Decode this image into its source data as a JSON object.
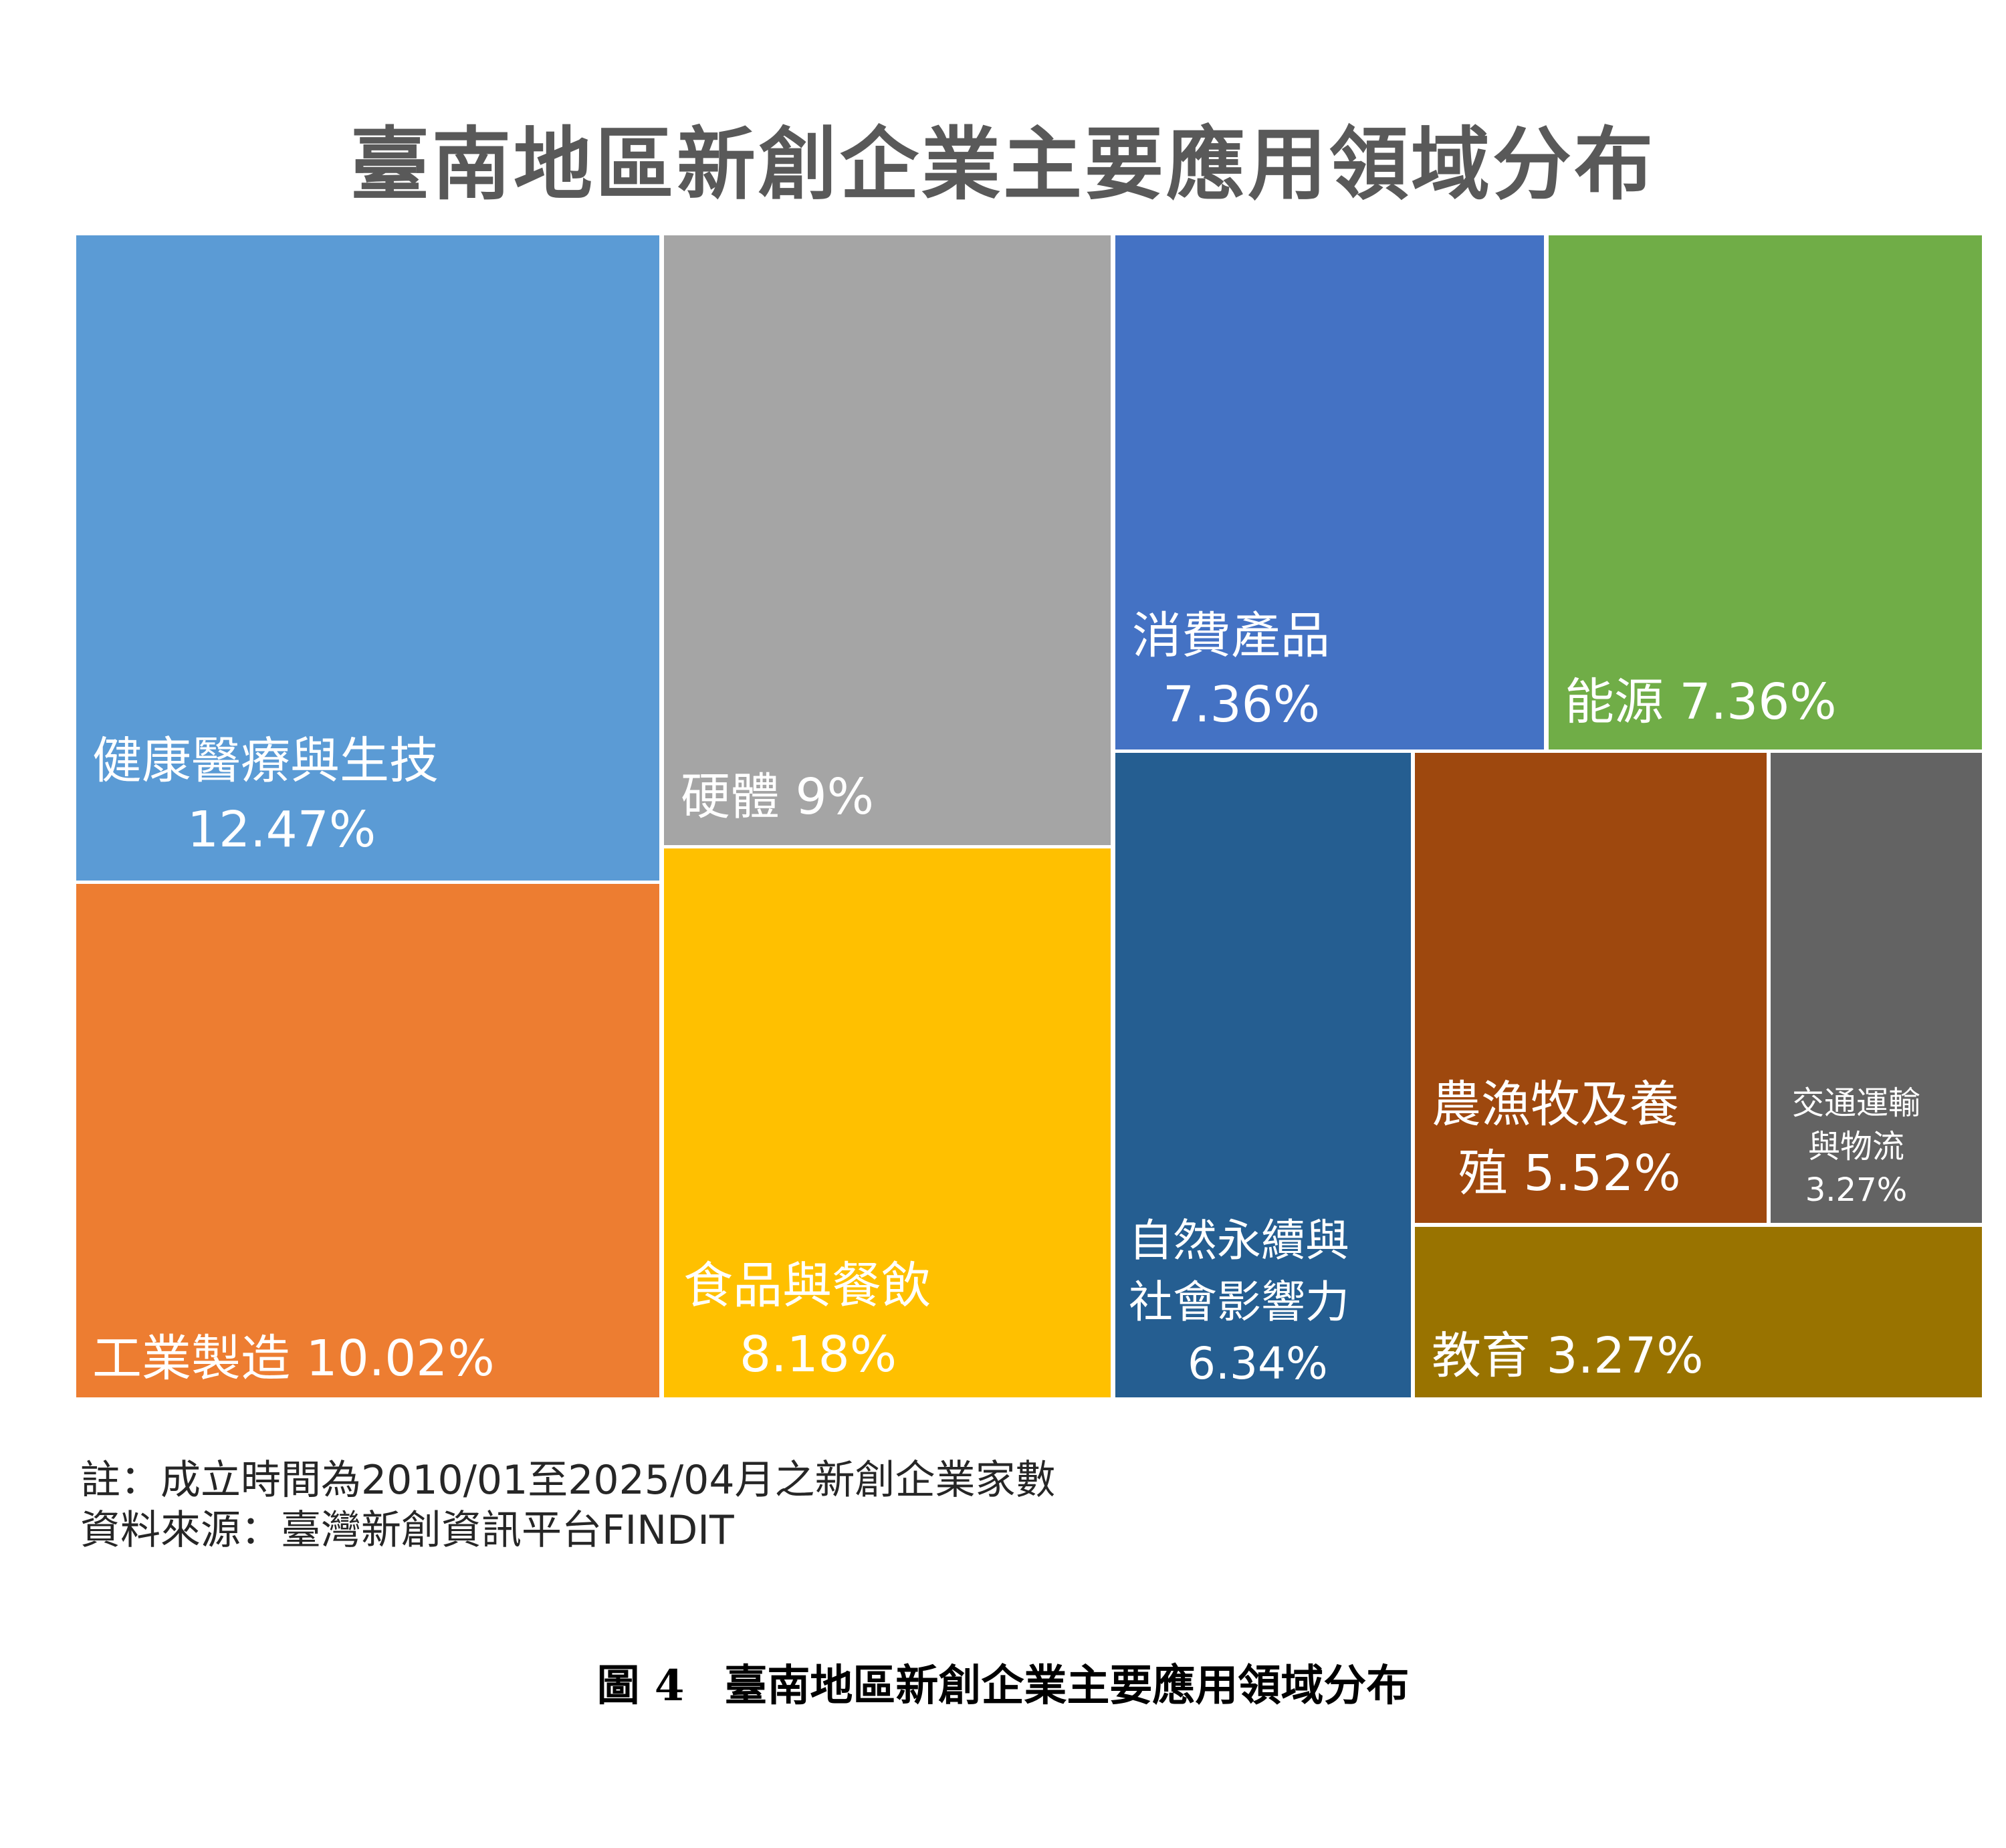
{
  "chart_data": {
    "type": "treemap",
    "title": "臺南地區新創企業主要應用領域分布",
    "unit": "%",
    "items": [
      {
        "name": "健康醫療與生技",
        "value": 12.47,
        "display": "12.47%",
        "color": "#5B9BD5",
        "lines": [
          "健康醫療與生技",
          "12.47%"
        ]
      },
      {
        "name": "工業製造",
        "value": 10.02,
        "display": "10.02%",
        "color": "#ED7D31",
        "lines": [
          "工業製造 10.02%"
        ]
      },
      {
        "name": "硬體",
        "value": 9,
        "display": "9%",
        "color": "#A5A5A5",
        "lines": [
          "硬體 9%"
        ]
      },
      {
        "name": "食品與餐飲",
        "value": 8.18,
        "display": "8.18%",
        "color": "#FFC000",
        "lines": [
          "食品與餐飲",
          "8.18%"
        ]
      },
      {
        "name": "消費產品",
        "value": 7.36,
        "display": "7.36%",
        "color": "#4472C4",
        "lines": [
          "消費產品",
          "7.36%"
        ]
      },
      {
        "name": "能源",
        "value": 7.36,
        "display": "7.36%",
        "color": "#70AD47",
        "lines": [
          "能源 7.36%"
        ]
      },
      {
        "name": "自然永續與社會影響力",
        "value": 6.34,
        "display": "6.34%",
        "color": "#255E91",
        "lines": [
          "自然永續與",
          "社會影響力",
          "6.34%"
        ]
      },
      {
        "name": "農漁牧及養殖",
        "value": 5.52,
        "display": "5.52%",
        "color": "#9E480E",
        "lines": [
          "農漁牧及養",
          "殖 5.52%"
        ]
      },
      {
        "name": "交通運輸與物流",
        "value": 3.27,
        "display": "3.27%",
        "color": "#636363",
        "lines": [
          "交通運輸",
          "與物流",
          "3.27%"
        ]
      },
      {
        "name": "教育",
        "value": 3.27,
        "display": "3.27%",
        "color": "#997300",
        "lines": [
          "教育 3.27%"
        ]
      }
    ]
  },
  "notes": {
    "note": "註：成立時間為2010/01至2025/04月之新創企業家數",
    "source": "資料來源：臺灣新創資訊平台FINDIT"
  },
  "caption": {
    "figure_no": "圖 4",
    "text": "臺南地區新創企業主要應用領域分布"
  }
}
